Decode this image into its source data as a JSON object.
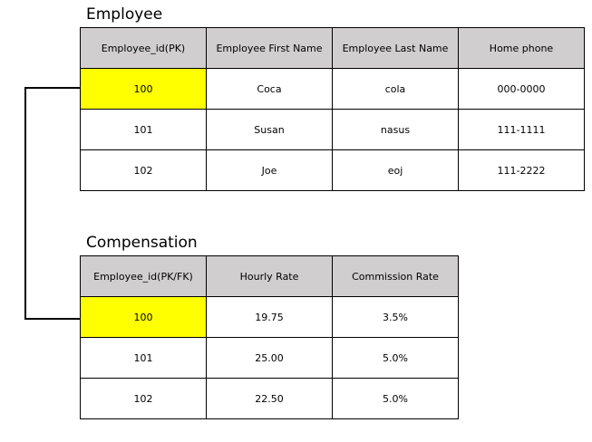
{
  "employee": {
    "title": "Employee",
    "headers": [
      "Employee_id(PK)",
      "Employee First Name",
      "Employee Last Name",
      "Home phone"
    ],
    "rows": [
      [
        "100",
        "Coca",
        "cola",
        "000-0000"
      ],
      [
        "101",
        "Susan",
        "nasus",
        "111-1111"
      ],
      [
        "102",
        "Joe",
        "eoj",
        "111-2222"
      ]
    ]
  },
  "compensation": {
    "title": "Compensation",
    "headers": [
      "Employee_id(PK/FK)",
      "Hourly Rate",
      "Commission Rate"
    ],
    "rows": [
      [
        "100",
        "19.75",
        "3.5%"
      ],
      [
        "101",
        "25.00",
        "5.0%"
      ],
      [
        "102",
        "22.50",
        "5.0%"
      ]
    ]
  },
  "colors": {
    "header_bg": "#d0cece",
    "highlight": "#ffff00",
    "border": "#000000"
  }
}
